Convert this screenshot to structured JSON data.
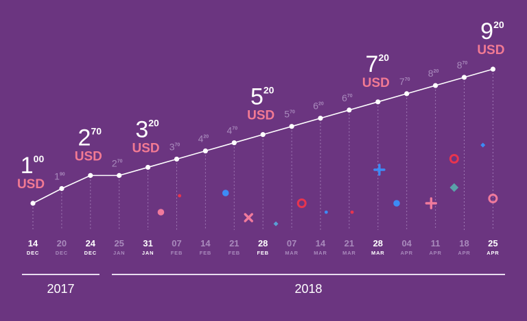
{
  "chart_data": {
    "type": "line",
    "categories": [
      {
        "day": "14",
        "month": "DEC",
        "emphasis": true
      },
      {
        "day": "20",
        "month": "DEC",
        "emphasis": false
      },
      {
        "day": "24",
        "month": "DEC",
        "emphasis": true
      },
      {
        "day": "25",
        "month": "JAN",
        "emphasis": false
      },
      {
        "day": "31",
        "month": "JAN",
        "emphasis": true
      },
      {
        "day": "07",
        "month": "FEB",
        "emphasis": false
      },
      {
        "day": "14",
        "month": "FEB",
        "emphasis": false
      },
      {
        "day": "21",
        "month": "FEB",
        "emphasis": false
      },
      {
        "day": "28",
        "month": "FEB",
        "emphasis": true
      },
      {
        "day": "07",
        "month": "MAR",
        "emphasis": false
      },
      {
        "day": "14",
        "month": "MAR",
        "emphasis": false
      },
      {
        "day": "21",
        "month": "MAR",
        "emphasis": false
      },
      {
        "day": "28",
        "month": "MAR",
        "emphasis": true
      },
      {
        "day": "04",
        "month": "APR",
        "emphasis": false
      },
      {
        "day": "11",
        "month": "APR",
        "emphasis": false
      },
      {
        "day": "18",
        "month": "APR",
        "emphasis": false
      },
      {
        "day": "25",
        "month": "APR",
        "emphasis": true
      }
    ],
    "series": [
      {
        "values": [
          1.0,
          1.9,
          2.7,
          2.7,
          3.2,
          3.7,
          4.2,
          4.7,
          5.2,
          5.7,
          6.2,
          6.7,
          7.2,
          7.7,
          8.2,
          8.7,
          9.2
        ]
      }
    ],
    "price_labels": [
      {
        "major": "1",
        "minor": "00",
        "unit": "USD",
        "emphasis": true
      },
      {
        "major": "1",
        "minor": "90",
        "unit": "",
        "emphasis": false
      },
      {
        "major": "2",
        "minor": "70",
        "unit": "USD",
        "emphasis": true
      },
      {
        "major": "2",
        "minor": "70",
        "unit": "",
        "emphasis": false
      },
      {
        "major": "3",
        "minor": "20",
        "unit": "USD",
        "emphasis": true
      },
      {
        "major": "3",
        "minor": "70",
        "unit": "",
        "emphasis": false
      },
      {
        "major": "4",
        "minor": "20",
        "unit": "",
        "emphasis": false
      },
      {
        "major": "4",
        "minor": "70",
        "unit": "",
        "emphasis": false
      },
      {
        "major": "5",
        "minor": "20",
        "unit": "USD",
        "emphasis": true
      },
      {
        "major": "5",
        "minor": "70",
        "unit": "",
        "emphasis": false
      },
      {
        "major": "6",
        "minor": "20",
        "unit": "",
        "emphasis": false
      },
      {
        "major": "6",
        "minor": "70",
        "unit": "",
        "emphasis": false
      },
      {
        "major": "7",
        "minor": "20",
        "unit": "USD",
        "emphasis": true
      },
      {
        "major": "7",
        "minor": "70",
        "unit": "",
        "emphasis": false
      },
      {
        "major": "8",
        "minor": "20",
        "unit": "",
        "emphasis": false
      },
      {
        "major": "8",
        "minor": "70",
        "unit": "",
        "emphasis": false
      },
      {
        "major": "9",
        "minor": "20",
        "unit": "USD",
        "emphasis": true
      }
    ],
    "years": [
      {
        "label": "2017",
        "from": 0,
        "to": 2
      },
      {
        "label": "2018",
        "from": 3,
        "to": 16
      }
    ],
    "decorations": [
      {
        "shape": "dot",
        "color": "#f07a9c",
        "index": 4.45
      },
      {
        "shape": "dot-small",
        "color": "#e8344e",
        "index": 5.1
      },
      {
        "shape": "dot",
        "color": "#3d8bf5",
        "index": 6.7
      },
      {
        "shape": "cross",
        "color": "#f07a9c",
        "index": 7.5
      },
      {
        "shape": "diamond-small",
        "color": "#5a9fd4",
        "index": 8.45
      },
      {
        "shape": "ring",
        "color": "#e8344e",
        "index": 9.35
      },
      {
        "shape": "dot-small",
        "color": "#3d8bf5",
        "index": 10.2
      },
      {
        "shape": "dot-small",
        "color": "#e8344e",
        "index": 11.1
      },
      {
        "shape": "plus",
        "color": "#3d8bf5",
        "index": 12.05
      },
      {
        "shape": "dot",
        "color": "#3d8bf5",
        "index": 12.65
      },
      {
        "shape": "plus",
        "color": "#f07a9c",
        "index": 13.85
      },
      {
        "shape": "ring",
        "color": "#e8344e",
        "index": 14.65
      },
      {
        "shape": "diamond",
        "color": "#5aa1a9",
        "index": 14.65
      },
      {
        "shape": "diamond-small",
        "color": "#3d8bf5",
        "index": 15.65
      },
      {
        "shape": "ring",
        "color": "#f07a9c",
        "index": 16.0
      }
    ],
    "colors": {
      "background": "#6b3580",
      "line": "#ffffff",
      "usd": "#f27a93",
      "muted_text": "#a98abc",
      "gridline": "#a07ab5"
    }
  }
}
